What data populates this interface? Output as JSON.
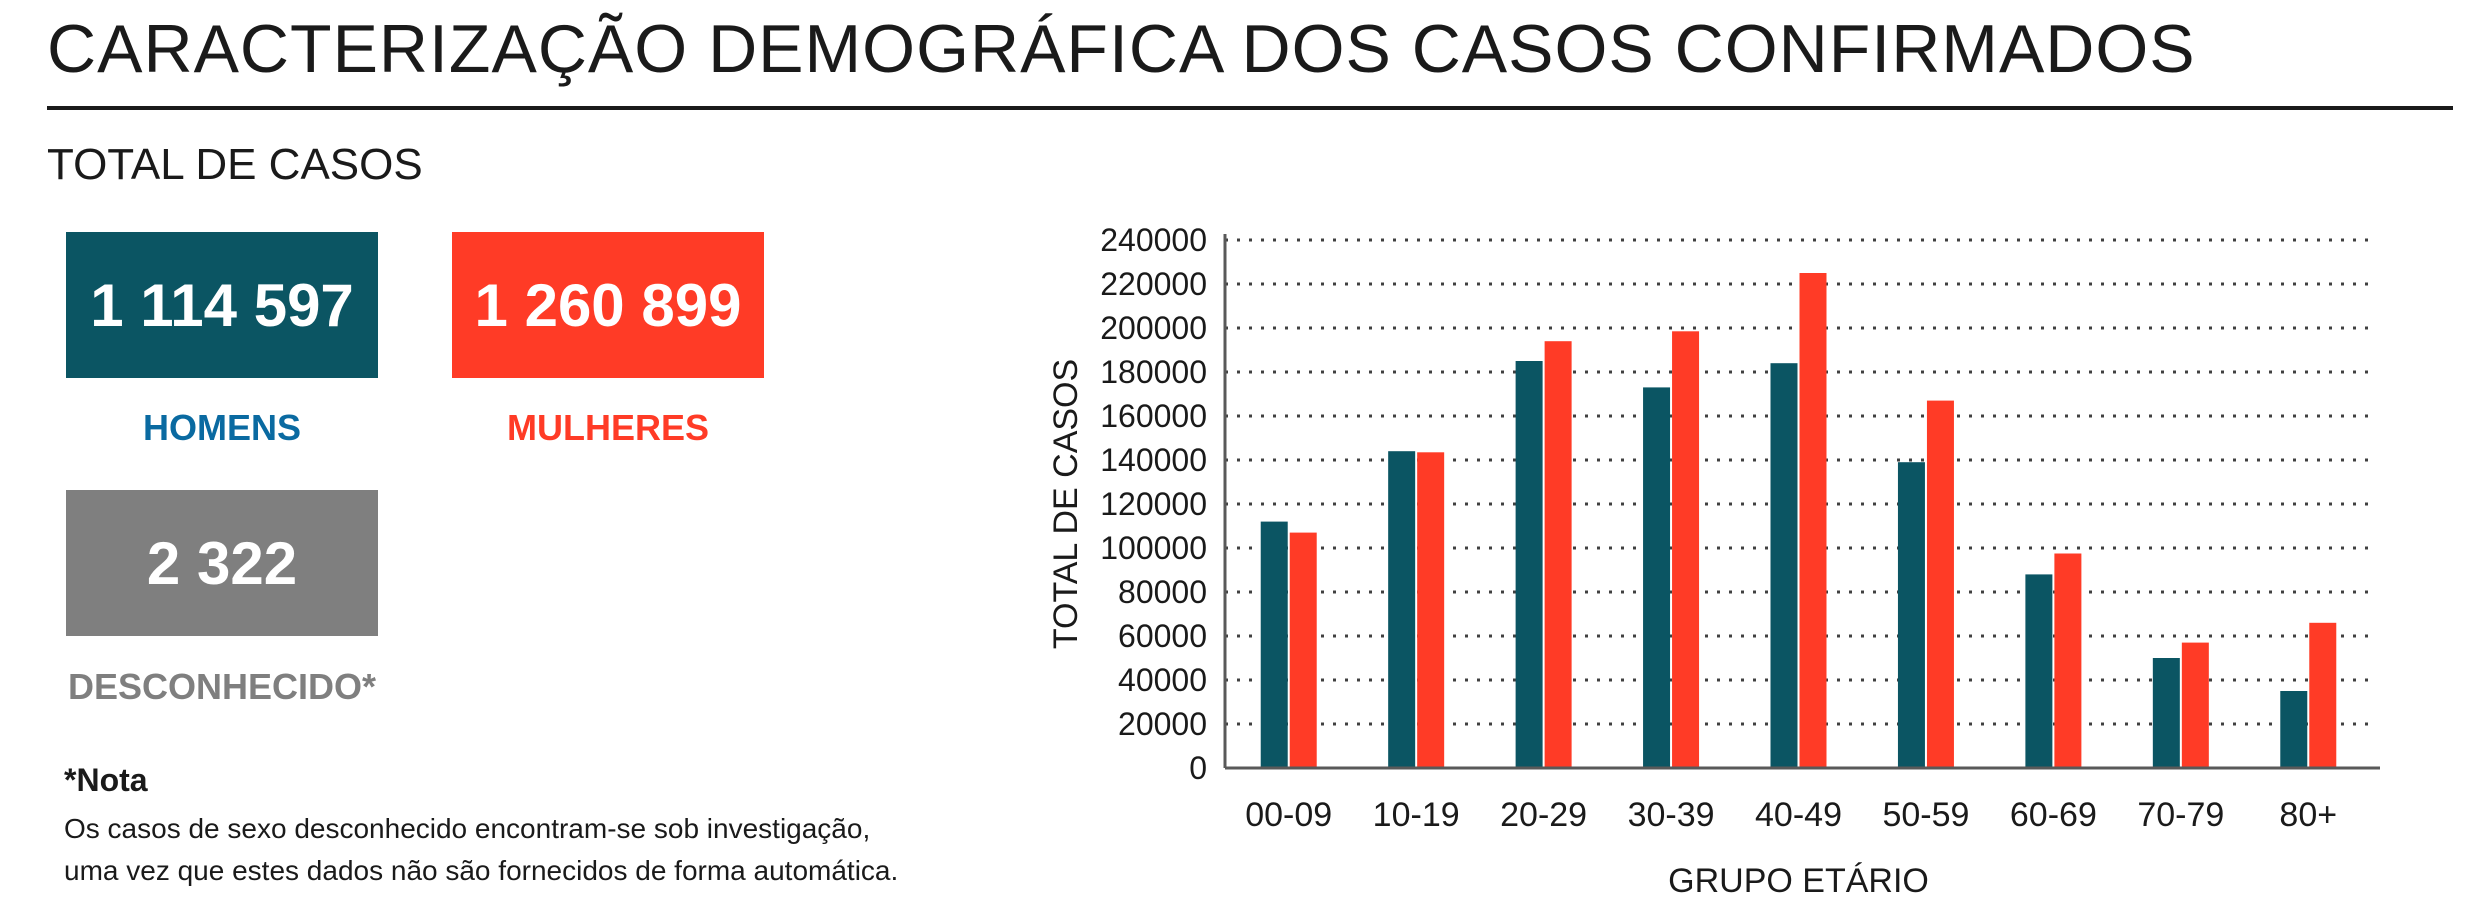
{
  "header": {
    "title": "CARACTERIZAÇÃO DEMOGRÁFICA DOS CASOS CONFIRMADOS"
  },
  "summary": {
    "section_title": "TOTAL DE CASOS",
    "men": {
      "value": "1 114 597",
      "label": "HOMENS"
    },
    "women": {
      "value": "1 260 899",
      "label": "MULHERES"
    },
    "unknown": {
      "value": "2 322",
      "label": "DESCONHECIDO*"
    }
  },
  "note": {
    "title": "*Nota",
    "line1": "Os casos de sexo desconhecido encontram-se sob investigação,",
    "line2": "uma vez que estes dados não são fornecidos de forma automática."
  },
  "colors": {
    "men": "#0b5563",
    "women": "#ff3b26",
    "unknown": "#7f7f7f",
    "men_label": "#0a6aa1"
  },
  "chart_data": {
    "type": "bar",
    "categories": [
      "00-09",
      "10-19",
      "20-29",
      "30-39",
      "40-49",
      "50-59",
      "60-69",
      "70-79",
      "80+"
    ],
    "series": [
      {
        "values": [
          112000,
          144000,
          185000,
          173000,
          184000,
          139000,
          88000,
          50000,
          35000
        ],
        "color": "#0b5563"
      },
      {
        "values": [
          107000,
          143500,
          194000,
          198500,
          225000,
          167000,
          97500,
          57000,
          66000
        ],
        "color": "#ff3b26"
      }
    ],
    "xlabel": "GRUPO ETÁRIO",
    "ylabel": "TOTAL DE CASOS",
    "ylim": [
      0,
      240000
    ],
    "yticks": [
      0,
      20000,
      40000,
      60000,
      80000,
      100000,
      120000,
      140000,
      160000,
      180000,
      200000,
      220000,
      240000
    ],
    "grid": true
  }
}
